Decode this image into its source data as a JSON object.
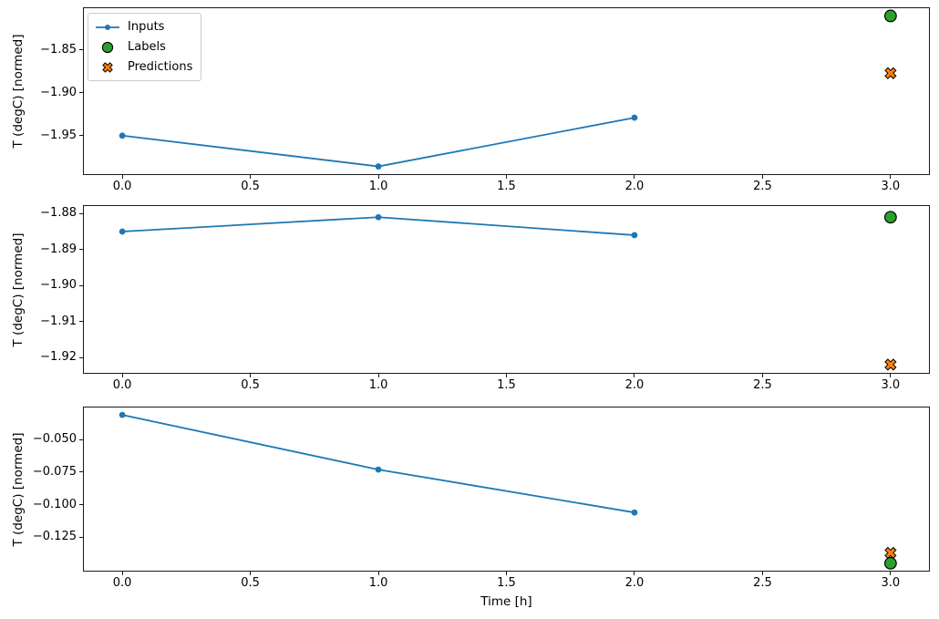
{
  "figure": {
    "background": "#ffffff",
    "spine_color": "#1a1a1a"
  },
  "legend": {
    "position": "upper-left",
    "items": [
      {
        "label": "Inputs",
        "icon": "line-dot-icon",
        "color": "#1f77b4",
        "edge": "#1f77b4"
      },
      {
        "label": "Labels",
        "icon": "circle-icon",
        "color": "#2ca02c",
        "edge": "#000000"
      },
      {
        "label": "Predictions",
        "icon": "x-cross-icon",
        "color": "#ff7f0e",
        "edge": "#000000"
      }
    ]
  },
  "chart_data": [
    {
      "type": "line",
      "title": "",
      "ylabel": "T (degC) [normed]",
      "xlabel": "",
      "grid": false,
      "xlim": [
        -0.15,
        3.15
      ],
      "ylim": [
        -1.995,
        -1.801
      ],
      "xticks": [
        0,
        0.5,
        1,
        1.5,
        2,
        2.5,
        3
      ],
      "xtick_labels": [
        "0.0",
        "0.5",
        "1.0",
        "1.5",
        "2.0",
        "2.5",
        "3.0"
      ],
      "yticks": [
        -1.85,
        -1.9,
        -1.95
      ],
      "ytick_labels": [
        "−1.85",
        "−1.90",
        "−1.95"
      ],
      "series": [
        {
          "name": "Inputs",
          "kind": "line-markers",
          "color": "#1f77b4",
          "x": [
            0,
            1,
            2
          ],
          "y": [
            -1.95,
            -1.986,
            -1.929
          ]
        },
        {
          "name": "Labels",
          "kind": "scatter-circle",
          "color": "#2ca02c",
          "edge": "#000000",
          "x": [
            3
          ],
          "y": [
            -1.81
          ]
        },
        {
          "name": "Predictions",
          "kind": "scatter-x",
          "color": "#ff7f0e",
          "edge": "#000000",
          "x": [
            3
          ],
          "y": [
            -1.877
          ]
        }
      ]
    },
    {
      "type": "line",
      "title": "",
      "ylabel": "T (degC) [normed]",
      "xlabel": "",
      "grid": false,
      "xlim": [
        -0.15,
        3.15
      ],
      "ylim": [
        -1.9243,
        -1.8779
      ],
      "xticks": [
        0,
        0.5,
        1,
        1.5,
        2,
        2.5,
        3
      ],
      "xtick_labels": [
        "0.0",
        "0.5",
        "1.0",
        "1.5",
        "2.0",
        "2.5",
        "3.0"
      ],
      "yticks": [
        -1.88,
        -1.89,
        -1.9,
        -1.91,
        -1.92
      ],
      "ytick_labels": [
        "−1.88",
        "−1.89",
        "−1.90",
        "−1.91",
        "−1.92"
      ],
      "series": [
        {
          "name": "Inputs",
          "kind": "line-markers",
          "color": "#1f77b4",
          "x": [
            0,
            1,
            2
          ],
          "y": [
            -1.885,
            -1.881,
            -1.886
          ]
        },
        {
          "name": "Labels",
          "kind": "scatter-circle",
          "color": "#2ca02c",
          "edge": "#000000",
          "x": [
            3
          ],
          "y": [
            -1.881
          ]
        },
        {
          "name": "Predictions",
          "kind": "scatter-x",
          "color": "#ff7f0e",
          "edge": "#000000",
          "x": [
            3
          ],
          "y": [
            -1.922
          ]
        }
      ]
    },
    {
      "type": "line",
      "title": "",
      "ylabel": "T (degC) [normed]",
      "xlabel": "Time [h]",
      "grid": false,
      "xlim": [
        -0.15,
        3.15
      ],
      "ylim": [
        -0.1507,
        -0.0253
      ],
      "xticks": [
        0,
        0.5,
        1,
        1.5,
        2,
        2.5,
        3
      ],
      "xtick_labels": [
        "0.0",
        "0.5",
        "1.0",
        "1.5",
        "2.0",
        "2.5",
        "3.0"
      ],
      "yticks": [
        -0.05,
        -0.075,
        -0.1,
        -0.125
      ],
      "ytick_labels": [
        "−0.050",
        "−0.075",
        "−0.100",
        "−0.125"
      ],
      "series": [
        {
          "name": "Inputs",
          "kind": "line-markers",
          "color": "#1f77b4",
          "x": [
            0,
            1,
            2
          ],
          "y": [
            -0.031,
            -0.073,
            -0.106
          ]
        },
        {
          "name": "Labels",
          "kind": "scatter-circle",
          "color": "#2ca02c",
          "edge": "#000000",
          "x": [
            3
          ],
          "y": [
            -0.145
          ]
        },
        {
          "name": "Predictions",
          "kind": "scatter-x",
          "color": "#ff7f0e",
          "edge": "#000000",
          "x": [
            3
          ],
          "y": [
            -0.137
          ]
        }
      ]
    }
  ]
}
